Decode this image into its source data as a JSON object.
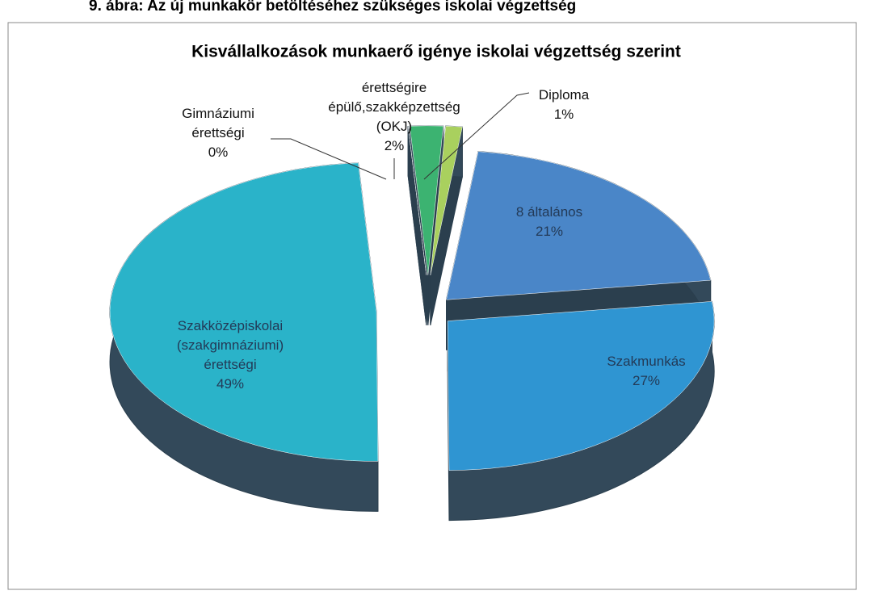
{
  "caption": "9. ábra: Az új munkakör betöltéséhez szükséges iskolai végzettség",
  "chart_data": {
    "type": "pie3d",
    "title": "Kisvállalkozások munkaerő igénye iskolai végzettség szerint",
    "categories": [
      "8 általános",
      "Szakmunkás",
      "Szakközépiskolai (szakgimnáziumi) érettségi",
      "Gimnáziumi érettségi",
      "érettségire épülő,szakképzettség (OKJ)",
      "Diploma"
    ],
    "values": [
      21,
      27,
      49,
      0,
      2,
      1
    ],
    "value_labels": [
      "21%",
      "27%",
      "49%",
      "0%",
      "2%",
      "1%"
    ],
    "colors": [
      "#4a86c8",
      "#2f95d2",
      "#2ab3c9",
      "#3aa86a",
      "#3cb371",
      "#a9d05e"
    ]
  }
}
